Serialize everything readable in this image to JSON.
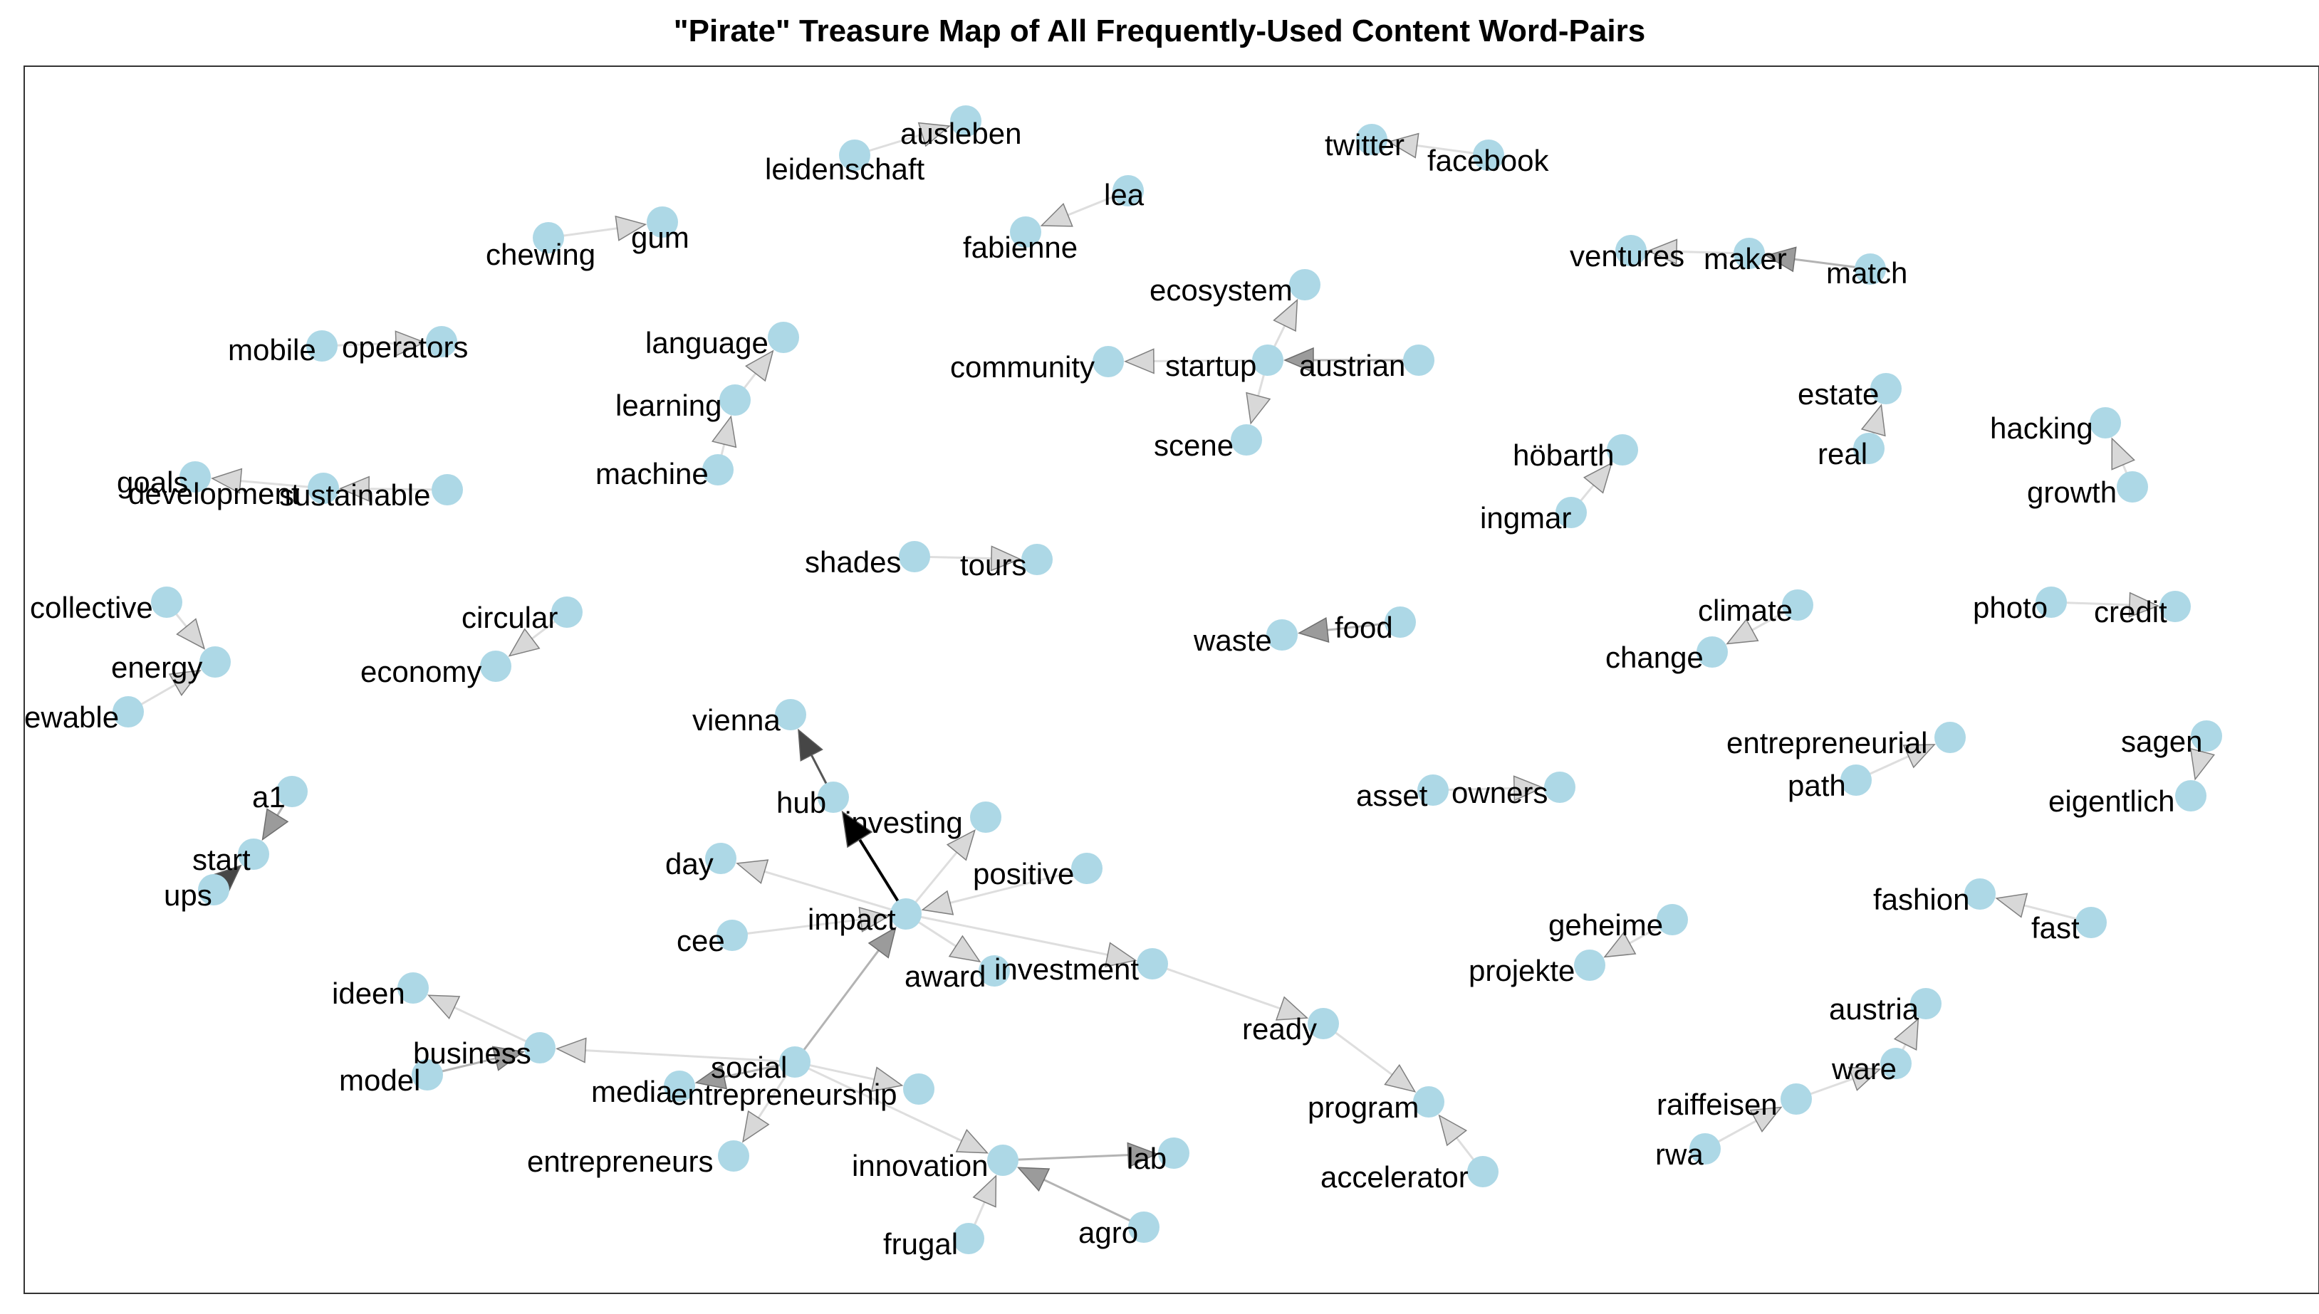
{
  "title": "\"Pirate\" Treasure Map of All Frequently-Used Content Word-Pairs",
  "colors": {
    "node": "#add8e6",
    "edge_light": "#d9d9d9",
    "edge_dark": "#000000",
    "text": "#000000"
  },
  "nodes": [
    {
      "id": "ausleben",
      "label": "ausleben"
    },
    {
      "id": "leidenschaft",
      "label": "leidenschaft"
    },
    {
      "id": "chewing",
      "label": "chewing"
    },
    {
      "id": "gum",
      "label": "gum"
    },
    {
      "id": "lea",
      "label": "lea"
    },
    {
      "id": "fabienne",
      "label": "fabienne"
    },
    {
      "id": "twitter",
      "label": "twitter"
    },
    {
      "id": "facebook",
      "label": "facebook"
    },
    {
      "id": "ventures",
      "label": "ventures"
    },
    {
      "id": "maker",
      "label": "maker"
    },
    {
      "id": "match",
      "label": "match"
    },
    {
      "id": "mobile",
      "label": "mobile"
    },
    {
      "id": "operators",
      "label": "operators"
    },
    {
      "id": "language",
      "label": "language"
    },
    {
      "id": "learning",
      "label": "learning"
    },
    {
      "id": "machine",
      "label": "machine"
    },
    {
      "id": "ecosystem",
      "label": "ecosystem"
    },
    {
      "id": "community",
      "label": "community"
    },
    {
      "id": "startup",
      "label": "startup"
    },
    {
      "id": "austrian",
      "label": "austrian"
    },
    {
      "id": "scene",
      "label": "scene"
    },
    {
      "id": "estate",
      "label": "estate"
    },
    {
      "id": "real",
      "label": "real"
    },
    {
      "id": "hacking",
      "label": "hacking"
    },
    {
      "id": "growth",
      "label": "growth"
    },
    {
      "id": "goals",
      "label": "goals"
    },
    {
      "id": "development",
      "label": "development"
    },
    {
      "id": "sustainable",
      "label": "sustainable"
    },
    {
      "id": "hobarth",
      "label": "höbarth"
    },
    {
      "id": "ingmar",
      "label": "ingmar"
    },
    {
      "id": "shades",
      "label": "shades"
    },
    {
      "id": "tours",
      "label": "tours"
    },
    {
      "id": "collective",
      "label": "collective"
    },
    {
      "id": "energy",
      "label": "energy"
    },
    {
      "id": "renewable",
      "label": "ewable"
    },
    {
      "id": "circular",
      "label": "circular"
    },
    {
      "id": "economy",
      "label": "economy"
    },
    {
      "id": "climate",
      "label": "climate"
    },
    {
      "id": "change",
      "label": "change"
    },
    {
      "id": "photo",
      "label": "photo"
    },
    {
      "id": "credit",
      "label": "credit"
    },
    {
      "id": "waste",
      "label": "waste"
    },
    {
      "id": "food",
      "label": "food"
    },
    {
      "id": "vienna",
      "label": "vienna"
    },
    {
      "id": "entrepreneurial",
      "label": "entrepreneurial"
    },
    {
      "id": "path",
      "label": "path"
    },
    {
      "id": "sagen",
      "label": "sagen"
    },
    {
      "id": "eigentlich",
      "label": "eigentlich"
    },
    {
      "id": "hub",
      "label": "hub"
    },
    {
      "id": "investing",
      "label": "investing"
    },
    {
      "id": "a1",
      "label": "a1"
    },
    {
      "id": "start",
      "label": "start"
    },
    {
      "id": "ups",
      "label": "ups"
    },
    {
      "id": "asset",
      "label": "asset"
    },
    {
      "id": "owners",
      "label": "owners"
    },
    {
      "id": "day",
      "label": "day"
    },
    {
      "id": "positive",
      "label": "positive"
    },
    {
      "id": "impact",
      "label": "impact"
    },
    {
      "id": "cee",
      "label": "cee"
    },
    {
      "id": "award",
      "label": "award"
    },
    {
      "id": "investment",
      "label": "investment"
    },
    {
      "id": "fashion",
      "label": "fashion"
    },
    {
      "id": "fast",
      "label": "fast"
    },
    {
      "id": "geheime",
      "label": "geheime"
    },
    {
      "id": "projekte",
      "label": "projekte"
    },
    {
      "id": "ideen",
      "label": "ideen"
    },
    {
      "id": "business",
      "label": "business"
    },
    {
      "id": "model",
      "label": "model"
    },
    {
      "id": "ready",
      "label": "ready"
    },
    {
      "id": "austria",
      "label": "austria"
    },
    {
      "id": "ware",
      "label": "ware"
    },
    {
      "id": "social",
      "label": "social"
    },
    {
      "id": "media",
      "label": "media"
    },
    {
      "id": "entrepreneurship",
      "label": "entrepreneurship"
    },
    {
      "id": "program",
      "label": "program"
    },
    {
      "id": "raiffeisen",
      "label": "raiffeisen"
    },
    {
      "id": "rwa",
      "label": "rwa"
    },
    {
      "id": "entrepreneurs",
      "label": "entrepreneurs"
    },
    {
      "id": "innovation",
      "label": "innovation"
    },
    {
      "id": "lab",
      "label": "lab"
    },
    {
      "id": "accelerator",
      "label": "accelerator"
    },
    {
      "id": "frugal",
      "label": "frugal"
    },
    {
      "id": "agro",
      "label": "agro"
    }
  ],
  "edges": [
    {
      "from": "leidenschaft",
      "to": "ausleben",
      "weight": 1
    },
    {
      "from": "chewing",
      "to": "gum",
      "weight": 1
    },
    {
      "from": "lea",
      "to": "fabienne",
      "weight": 1
    },
    {
      "from": "facebook",
      "to": "twitter",
      "weight": 1
    },
    {
      "from": "maker",
      "to": "ventures",
      "weight": 1
    },
    {
      "from": "match",
      "to": "maker",
      "weight": 2
    },
    {
      "from": "mobile",
      "to": "operators",
      "weight": 1
    },
    {
      "from": "machine",
      "to": "learning",
      "weight": 1
    },
    {
      "from": "learning",
      "to": "language",
      "weight": 1
    },
    {
      "from": "startup",
      "to": "ecosystem",
      "weight": 1
    },
    {
      "from": "startup",
      "to": "community",
      "weight": 1
    },
    {
      "from": "austrian",
      "to": "startup",
      "weight": 2
    },
    {
      "from": "startup",
      "to": "scene",
      "weight": 1
    },
    {
      "from": "real",
      "to": "estate",
      "weight": 1
    },
    {
      "from": "growth",
      "to": "hacking",
      "weight": 1
    },
    {
      "from": "sustainable",
      "to": "development",
      "weight": 1
    },
    {
      "from": "development",
      "to": "goals",
      "weight": 1
    },
    {
      "from": "ingmar",
      "to": "hobarth",
      "weight": 1
    },
    {
      "from": "shades",
      "to": "tours",
      "weight": 1
    },
    {
      "from": "collective",
      "to": "energy",
      "weight": 1
    },
    {
      "from": "renewable",
      "to": "energy",
      "weight": 1
    },
    {
      "from": "circular",
      "to": "economy",
      "weight": 1
    },
    {
      "from": "climate",
      "to": "change",
      "weight": 1
    },
    {
      "from": "photo",
      "to": "credit",
      "weight": 1
    },
    {
      "from": "food",
      "to": "waste",
      "weight": 2
    },
    {
      "from": "path",
      "to": "entrepreneurial",
      "weight": 1
    },
    {
      "from": "sagen",
      "to": "eigentlich",
      "weight": 1
    },
    {
      "from": "hub",
      "to": "vienna",
      "weight": 3
    },
    {
      "from": "a1",
      "to": "start",
      "weight": 2
    },
    {
      "from": "ups",
      "to": "start",
      "weight": 3
    },
    {
      "from": "asset",
      "to": "owners",
      "weight": 1
    },
    {
      "from": "impact",
      "to": "hub",
      "weight": 4
    },
    {
      "from": "impact",
      "to": "investing",
      "weight": 1
    },
    {
      "from": "impact",
      "to": "day",
      "weight": 1
    },
    {
      "from": "positive",
      "to": "impact",
      "weight": 1
    },
    {
      "from": "cee",
      "to": "impact",
      "weight": 1
    },
    {
      "from": "impact",
      "to": "award",
      "weight": 1
    },
    {
      "from": "impact",
      "to": "investment",
      "weight": 1
    },
    {
      "from": "investment",
      "to": "ready",
      "weight": 1
    },
    {
      "from": "fast",
      "to": "fashion",
      "weight": 1
    },
    {
      "from": "geheime",
      "to": "projekte",
      "weight": 1
    },
    {
      "from": "business",
      "to": "ideen",
      "weight": 1
    },
    {
      "from": "model",
      "to": "business",
      "weight": 2
    },
    {
      "from": "social",
      "to": "business",
      "weight": 1
    },
    {
      "from": "social",
      "to": "impact",
      "weight": 2
    },
    {
      "from": "social",
      "to": "media",
      "weight": 2
    },
    {
      "from": "social",
      "to": "entrepreneurship",
      "weight": 1
    },
    {
      "from": "social",
      "to": "entrepreneurs",
      "weight": 1
    },
    {
      "from": "social",
      "to": "innovation",
      "weight": 1
    },
    {
      "from": "ready",
      "to": "program",
      "weight": 1
    },
    {
      "from": "accelerator",
      "to": "program",
      "weight": 1
    },
    {
      "from": "ware",
      "to": "austria",
      "weight": 1
    },
    {
      "from": "raiffeisen",
      "to": "ware",
      "weight": 1
    },
    {
      "from": "rwa",
      "to": "raiffeisen",
      "weight": 1
    },
    {
      "from": "innovation",
      "to": "lab",
      "weight": 2
    },
    {
      "from": "frugal",
      "to": "innovation",
      "weight": 1
    },
    {
      "from": "agro",
      "to": "innovation",
      "weight": 2
    }
  ]
}
